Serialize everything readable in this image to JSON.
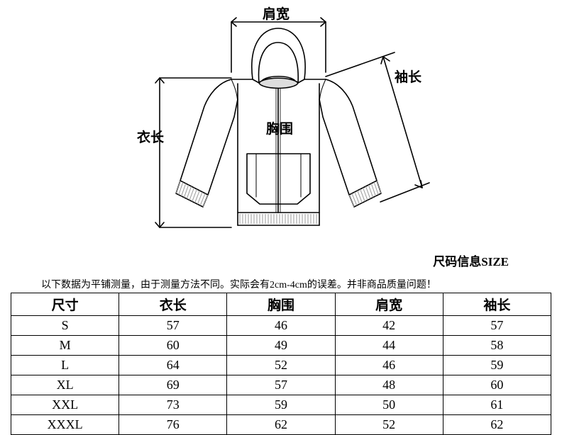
{
  "diagram": {
    "labels": {
      "shoulder": "肩宽",
      "chest": "胸围",
      "length": "衣长",
      "sleeve": "袖长"
    },
    "stroke": "#000000",
    "stroke_width": 1.6,
    "hatch_color": "#999999"
  },
  "title_size": "尺码信息SIZE",
  "note": "以下数据为平铺测量，由于测量方法不同。实际会有2cm-4cm的误差。并非商品质量问题！",
  "table": {
    "columns": [
      "尺寸",
      "衣长",
      "胸围",
      "肩宽",
      "袖长"
    ],
    "rows": [
      [
        "S",
        "57",
        "46",
        "42",
        "57"
      ],
      [
        "M",
        "60",
        "49",
        "44",
        "58"
      ],
      [
        "L",
        "64",
        "52",
        "46",
        "59"
      ],
      [
        "XL",
        "69",
        "57",
        "48",
        "60"
      ],
      [
        "XXL",
        "73",
        "59",
        "50",
        "61"
      ],
      [
        "XXXL",
        "76",
        "62",
        "52",
        "62"
      ]
    ],
    "col_widths": [
      "20%",
      "20%",
      "20%",
      "20%",
      "20%"
    ]
  }
}
